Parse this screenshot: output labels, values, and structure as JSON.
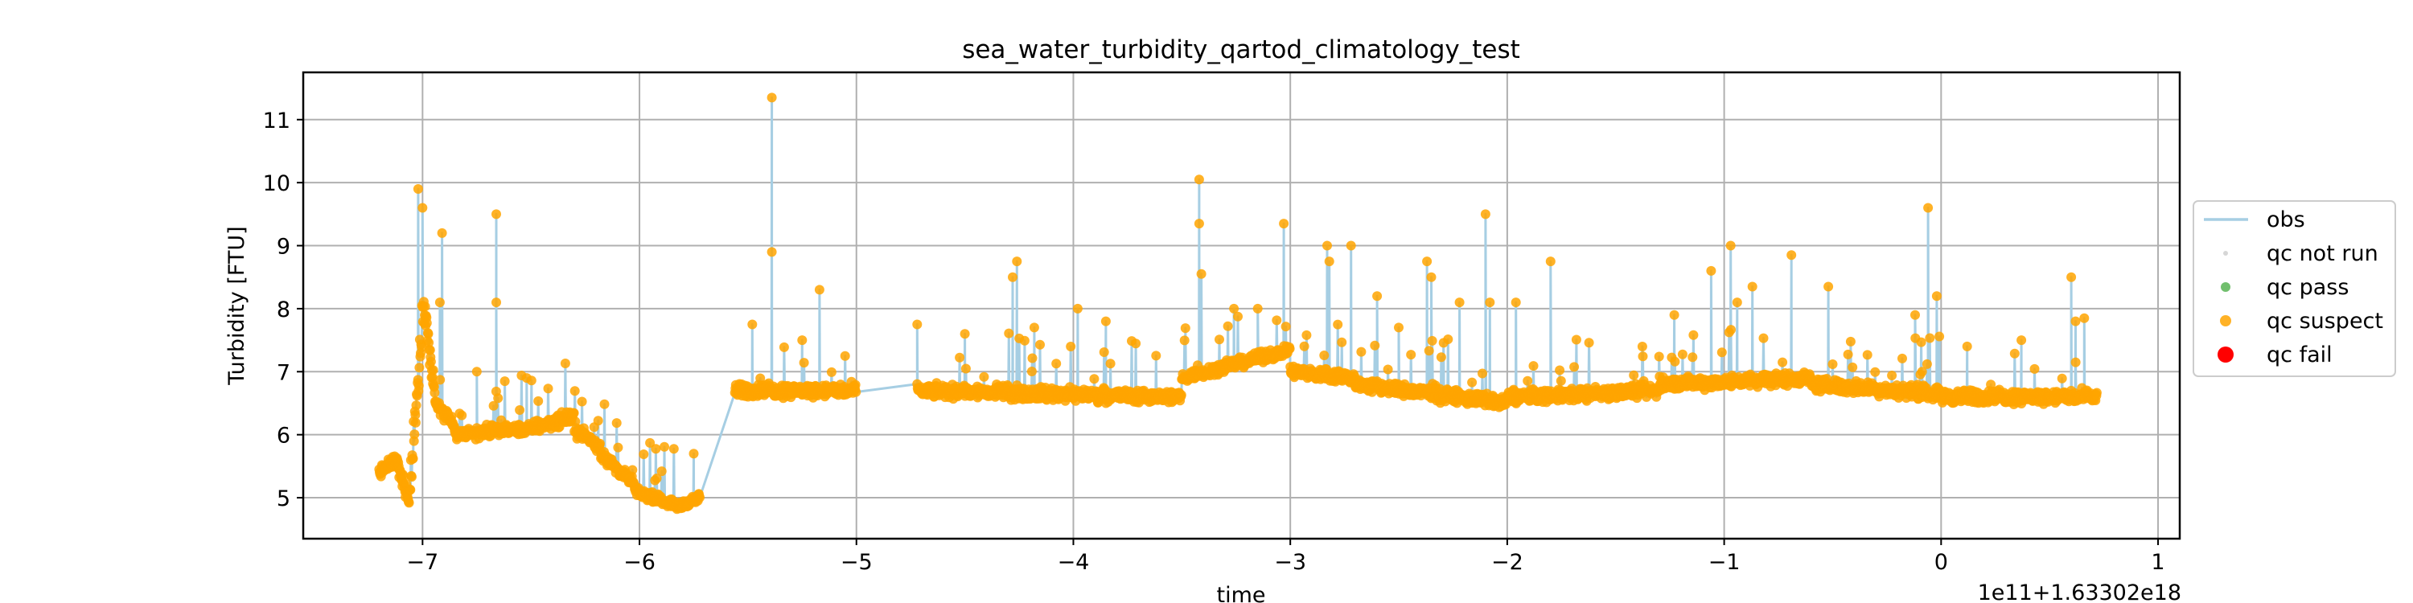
{
  "chart_data": {
    "type": "line",
    "title": "sea_water_turbidity_qartod_climatology_test",
    "xlabel": "time",
    "ylabel": "Turbidity [FTU]",
    "x_offset_label": "1e11+1.63302e18",
    "xlim": [
      -7.55,
      1.1
    ],
    "ylim": [
      4.35,
      11.75
    ],
    "xticks": [
      -7,
      -6,
      -5,
      -4,
      -3,
      -2,
      -1,
      0,
      1
    ],
    "xtick_labels": [
      "−7",
      "−6",
      "−5",
      "−4",
      "−3",
      "−2",
      "−1",
      "0",
      "1"
    ],
    "yticks": [
      5,
      6,
      7,
      8,
      9,
      10,
      11
    ],
    "ytick_labels": [
      "5",
      "6",
      "7",
      "8",
      "9",
      "10",
      "11"
    ],
    "grid": true,
    "legend_position": "right",
    "series": [
      {
        "name": "obs",
        "marker": "line",
        "color": "#a6cee3"
      },
      {
        "name": "qc not run",
        "marker": "point",
        "color": "#cccccc"
      },
      {
        "name": "qc pass",
        "marker": "point",
        "color": "#4daf4a"
      },
      {
        "name": "qc suspect",
        "marker": "point",
        "color": "#ffa500"
      },
      {
        "name": "qc fail",
        "marker": "point",
        "color": "#ff0000"
      }
    ],
    "segments": [
      {
        "x0": -7.2,
        "x1": -7.12,
        "y0": 5.4,
        "y1": 5.6,
        "noise": 0.15
      },
      {
        "x0": -7.12,
        "x1": -7.06,
        "y0": 5.6,
        "y1": 4.9,
        "noise": 0.15
      },
      {
        "x0": -7.06,
        "x1": -6.99,
        "y0": 5.0,
        "y1": 8.3,
        "noise": 0.5
      },
      {
        "x0": -6.99,
        "x1": -6.94,
        "y0": 8.0,
        "y1": 6.5,
        "noise": 0.3
      },
      {
        "x0": -6.94,
        "x1": -6.85,
        "y0": 6.5,
        "y1": 6.1,
        "noise": 0.15
      },
      {
        "x0": -6.85,
        "x1": -6.5,
        "y0": 6.0,
        "y1": 6.1,
        "noise": 0.12
      },
      {
        "x0": -6.5,
        "x1": -6.3,
        "y0": 6.1,
        "y1": 6.3,
        "noise": 0.15
      },
      {
        "x0": -6.3,
        "x1": -6.18,
        "y0": 6.1,
        "y1": 5.8,
        "noise": 0.15
      },
      {
        "x0": -6.18,
        "x1": -6.02,
        "y0": 5.7,
        "y1": 5.2,
        "noise": 0.12
      },
      {
        "x0": -6.02,
        "x1": -5.8,
        "y0": 5.1,
        "y1": 4.85,
        "noise": 0.1
      },
      {
        "x0": -5.8,
        "x1": -5.72,
        "y0": 4.9,
        "y1": 5.0,
        "noise": 0.1
      },
      {
        "x0": -5.56,
        "x1": -5.0,
        "y0": 6.7,
        "y1": 6.7,
        "noise": 0.15
      },
      {
        "x0": -4.72,
        "x1": -3.5,
        "y0": 6.7,
        "y1": 6.6,
        "noise": 0.15
      },
      {
        "x0": -3.5,
        "x1": -3.0,
        "y0": 6.9,
        "y1": 7.35,
        "noise": 0.12
      },
      {
        "x0": -3.0,
        "x1": -2.7,
        "y0": 7.0,
        "y1": 6.9,
        "noise": 0.15
      },
      {
        "x0": -2.7,
        "x1": -2.0,
        "y0": 6.8,
        "y1": 6.5,
        "noise": 0.15
      },
      {
        "x0": -2.0,
        "x1": -1.3,
        "y0": 6.6,
        "y1": 6.7,
        "noise": 0.15
      },
      {
        "x0": -1.3,
        "x1": -0.6,
        "y0": 6.8,
        "y1": 6.9,
        "noise": 0.15
      },
      {
        "x0": -0.6,
        "x1": 0.0,
        "y0": 6.8,
        "y1": 6.65,
        "noise": 0.15
      },
      {
        "x0": 0.0,
        "x1": 0.72,
        "y0": 6.6,
        "y1": 6.6,
        "noise": 0.15
      }
    ],
    "gaps": [
      {
        "x0": -5.72,
        "x1": -5.56,
        "y0": 5.0,
        "y1": 5.1,
        "y_end": 6.7
      },
      {
        "x0": -5.0,
        "x1": -4.72,
        "y0": 6.7,
        "y1": 6.6,
        "y_end": 6.6
      }
    ],
    "spikes": [
      {
        "x": -7.02,
        "y": 9.9
      },
      {
        "x": -7.0,
        "y": 9.6
      },
      {
        "x": -6.91,
        "y": 9.2
      },
      {
        "x": -6.92,
        "y": 8.1
      },
      {
        "x": -6.66,
        "y": 9.5
      },
      {
        "x": -6.66,
        "y": 8.1
      },
      {
        "x": -6.75,
        "y": 7.0
      },
      {
        "x": -6.52,
        "y": 6.9
      },
      {
        "x": -5.75,
        "y": 5.7
      },
      {
        "x": -5.39,
        "y": 11.35
      },
      {
        "x": -5.39,
        "y": 8.9
      },
      {
        "x": -5.48,
        "y": 7.75
      },
      {
        "x": -5.17,
        "y": 8.3
      },
      {
        "x": -5.25,
        "y": 7.5
      },
      {
        "x": -4.72,
        "y": 7.75
      },
      {
        "x": -4.5,
        "y": 7.6
      },
      {
        "x": -4.26,
        "y": 8.75
      },
      {
        "x": -4.28,
        "y": 8.5
      },
      {
        "x": -4.18,
        "y": 7.7
      },
      {
        "x": -3.98,
        "y": 8.0
      },
      {
        "x": -3.85,
        "y": 7.8
      },
      {
        "x": -3.42,
        "y": 10.05
      },
      {
        "x": -3.42,
        "y": 9.35
      },
      {
        "x": -3.41,
        "y": 8.55
      },
      {
        "x": -3.26,
        "y": 8.0
      },
      {
        "x": -3.15,
        "y": 8.0
      },
      {
        "x": -3.03,
        "y": 9.35
      },
      {
        "x": -2.83,
        "y": 9.0
      },
      {
        "x": -2.82,
        "y": 8.75
      },
      {
        "x": -2.72,
        "y": 9.0
      },
      {
        "x": -2.6,
        "y": 8.2
      },
      {
        "x": -2.5,
        "y": 7.7
      },
      {
        "x": -2.37,
        "y": 8.75
      },
      {
        "x": -2.35,
        "y": 8.5
      },
      {
        "x": -2.22,
        "y": 8.1
      },
      {
        "x": -2.1,
        "y": 9.5
      },
      {
        "x": -2.08,
        "y": 8.1
      },
      {
        "x": -1.96,
        "y": 8.1
      },
      {
        "x": -1.8,
        "y": 8.75
      },
      {
        "x": -1.23,
        "y": 7.9
      },
      {
        "x": -1.06,
        "y": 8.6
      },
      {
        "x": -0.97,
        "y": 9.0
      },
      {
        "x": -0.94,
        "y": 8.1
      },
      {
        "x": -0.87,
        "y": 8.35
      },
      {
        "x": -0.69,
        "y": 8.85
      },
      {
        "x": -0.52,
        "y": 8.35
      },
      {
        "x": -0.06,
        "y": 9.6
      },
      {
        "x": -0.12,
        "y": 7.9
      },
      {
        "x": -0.02,
        "y": 8.2
      },
      {
        "x": 0.12,
        "y": 7.4
      },
      {
        "x": 0.37,
        "y": 7.5
      },
      {
        "x": 0.6,
        "y": 8.5
      },
      {
        "x": 0.62,
        "y": 7.8
      },
      {
        "x": 0.66,
        "y": 7.85
      }
    ]
  }
}
